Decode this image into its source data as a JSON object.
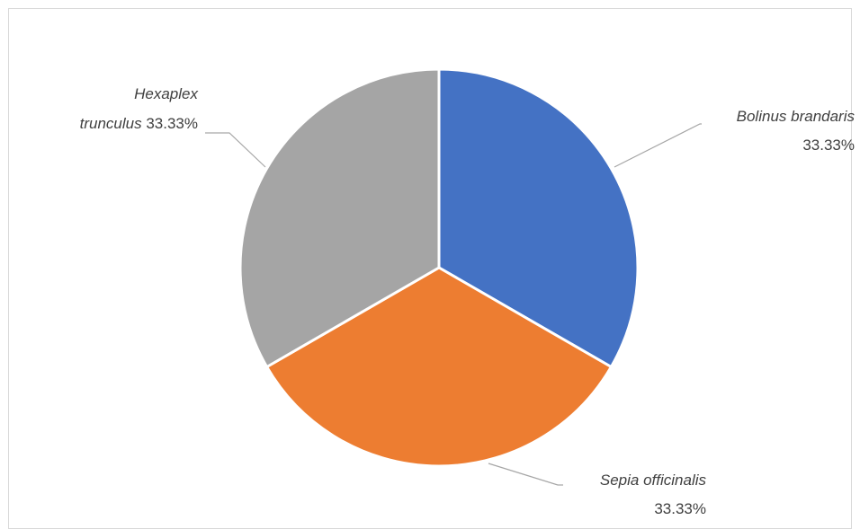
{
  "chart_data": {
    "type": "pie",
    "slices": [
      {
        "name": "Bolinus brandaris",
        "value": 33.33,
        "label": "33.33%",
        "color": "#4472c4"
      },
      {
        "name": "Sepia officinalis",
        "value": 33.33,
        "label": "33.33%",
        "color": "#ed7d31"
      },
      {
        "name": "Hexaplex trunculus",
        "value": 33.33,
        "label": "33.33%",
        "color": "#a5a5a5"
      }
    ],
    "label_text": [
      {
        "lines": [
          {
            "name": "Bolinus brandaris",
            "value": ""
          },
          {
            "name": "",
            "value": "33.33%"
          }
        ]
      },
      {
        "lines": [
          {
            "name": "Sepia officinalis",
            "value": ""
          },
          {
            "name": "",
            "value": "33.33%"
          }
        ]
      },
      {
        "lines": [
          {
            "name": "Hexaplex",
            "value": ""
          },
          {
            "name": "trunculus",
            "value": "33.33%"
          }
        ]
      }
    ],
    "start_angle_deg": 0,
    "direction": "clockwise",
    "legend": "none"
  }
}
